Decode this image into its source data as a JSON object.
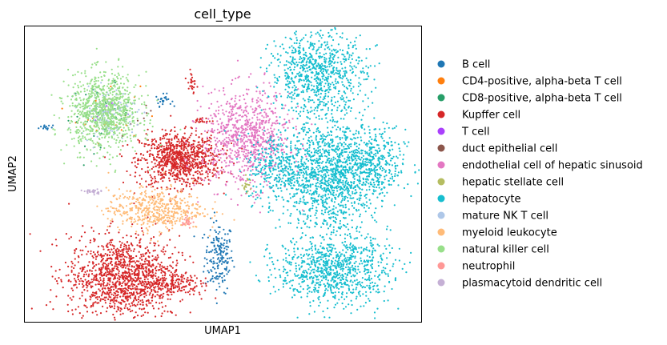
{
  "chart_data": {
    "type": "scatter",
    "title": "cell_type",
    "xlabel": "UMAP1",
    "ylabel": "UMAP2",
    "xlim": [
      0,
      100
    ],
    "ylim": [
      0,
      100
    ],
    "grid": false,
    "ticks": "none",
    "legend_position": "right-outside",
    "series": [
      {
        "name": "B cell",
        "color": "#1f77b4",
        "clusters": [
          {
            "center": [
              49.0,
              22.0
            ],
            "spread": [
              1.8,
              6.0
            ],
            "n": 180
          },
          {
            "center": [
              35.0,
              75.0
            ],
            "spread": [
              1.0,
              1.0
            ],
            "n": 25
          },
          {
            "center": [
              5.0,
              66.0
            ],
            "spread": [
              1.0,
              0.6
            ],
            "n": 14
          }
        ]
      },
      {
        "name": "CD4-positive, alpha-beta T cell",
        "color": "#ff7f0e",
        "clusters": [
          {
            "center": [
              21.0,
              71.0
            ],
            "spread": [
              4.0,
              5.0
            ],
            "n": 30
          }
        ]
      },
      {
        "name": "CD8-positive, alpha-beta T cell",
        "color": "#279e68",
        "clusters": [
          {
            "center": [
              19.0,
              70.0
            ],
            "spread": [
              4.0,
              5.0
            ],
            "n": 45
          }
        ]
      },
      {
        "name": "Kupffer cell",
        "color": "#d62728",
        "clusters": [
          {
            "center": [
              39.0,
              55.0
            ],
            "spread": [
              5.0,
              4.5
            ],
            "n": 900
          },
          {
            "center": [
              25.0,
              15.0
            ],
            "spread": [
              7.0,
              7.0
            ],
            "n": 1300
          },
          {
            "center": [
              37.0,
              13.0
            ],
            "spread": [
              3.5,
              2.0
            ],
            "n": 120
          },
          {
            "center": [
              42.0,
              81.0
            ],
            "spread": [
              0.6,
              2.5
            ],
            "n": 25
          },
          {
            "center": [
              45.0,
              68.0
            ],
            "spread": [
              1.0,
              0.5
            ],
            "n": 20
          }
        ]
      },
      {
        "name": "T cell",
        "color": "#aa40fc",
        "clusters": [
          {
            "center": [
              22.0,
              72.0
            ],
            "spread": [
              3.0,
              3.0
            ],
            "n": 10
          }
        ]
      },
      {
        "name": "duct epithelial cell",
        "color": "#8c564b",
        "clusters": [
          {
            "center": [
              28.0,
              70.0
            ],
            "spread": [
              3.0,
              3.0
            ],
            "n": 8
          }
        ]
      },
      {
        "name": "endothelial cell of hepatic sinusoid",
        "color": "#e377c2",
        "clusters": [
          {
            "center": [
              56.0,
              62.0
            ],
            "spread": [
              5.5,
              8.0
            ],
            "n": 850
          }
        ]
      },
      {
        "name": "hepatic stellate cell",
        "color": "#b5bd61",
        "clusters": [
          {
            "center": [
              56.0,
              46.0
            ],
            "spread": [
              0.5,
              1.5
            ],
            "n": 20
          }
        ]
      },
      {
        "name": "hepatocyte",
        "color": "#17becf",
        "clusters": [
          {
            "center": [
              74.0,
              84.0
            ],
            "spread": [
              6.0,
              7.0
            ],
            "n": 800
          },
          {
            "center": [
              77.0,
              50.0
            ],
            "spread": [
              6.0,
              9.0
            ],
            "n": 1200
          },
          {
            "center": [
              78.0,
              18.0
            ],
            "spread": [
              7.0,
              6.0
            ],
            "n": 900
          },
          {
            "center": [
              88.0,
              53.0
            ],
            "spread": [
              4.0,
              6.0
            ],
            "n": 350
          },
          {
            "center": [
              64.0,
              52.0
            ],
            "spread": [
              4.0,
              6.0
            ],
            "n": 300
          }
        ]
      },
      {
        "name": "mature NK T cell",
        "color": "#aec7e8",
        "clusters": [
          {
            "center": [
              21.0,
              71.0
            ],
            "spread": [
              3.5,
              4.0
            ],
            "n": 130
          }
        ]
      },
      {
        "name": "myeloid leukocyte",
        "color": "#ffbb78",
        "clusters": [
          {
            "center": [
              33.0,
              38.0
            ],
            "spread": [
              6.0,
              3.5
            ],
            "n": 500
          }
        ]
      },
      {
        "name": "natural killer cell",
        "color": "#98df8a",
        "clusters": [
          {
            "center": [
              20.0,
              71.0
            ],
            "spread": [
              4.5,
              6.5
            ],
            "n": 900
          }
        ]
      },
      {
        "name": "neutrophil",
        "color": "#ff9896",
        "clusters": [
          {
            "center": [
              41.0,
              34.0
            ],
            "spread": [
              0.6,
              1.2
            ],
            "n": 25
          }
        ]
      },
      {
        "name": "plasmacytoid dendritic cell",
        "color": "#c5b0d5",
        "clusters": [
          {
            "center": [
              17.0,
              44.0
            ],
            "spread": [
              1.2,
              0.4
            ],
            "n": 30
          }
        ]
      }
    ]
  }
}
